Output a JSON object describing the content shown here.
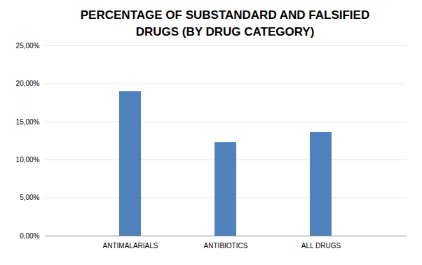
{
  "chart_data": {
    "type": "bar",
    "title": "PERCENTAGE OF SUBSTANDARD AND FALSIFIED\nDRUGS (BY DRUG CATEGORY)",
    "categories": [
      "ANTIMALARIALS",
      "ANTIBIOTICS",
      "ALL DRUGS"
    ],
    "values": [
      19.0,
      12.3,
      13.6
    ],
    "color": "#4f81bd",
    "ylim": [
      0,
      25
    ],
    "yticks": [
      {
        "value": 0,
        "label": "0,00%"
      },
      {
        "value": 5,
        "label": "5,00%"
      },
      {
        "value": 10,
        "label": "10,00%"
      },
      {
        "value": 15,
        "label": "15,00%"
      },
      {
        "value": 20,
        "label": "20,00%"
      },
      {
        "value": 25,
        "label": "25,00%"
      }
    ],
    "grid": true
  }
}
